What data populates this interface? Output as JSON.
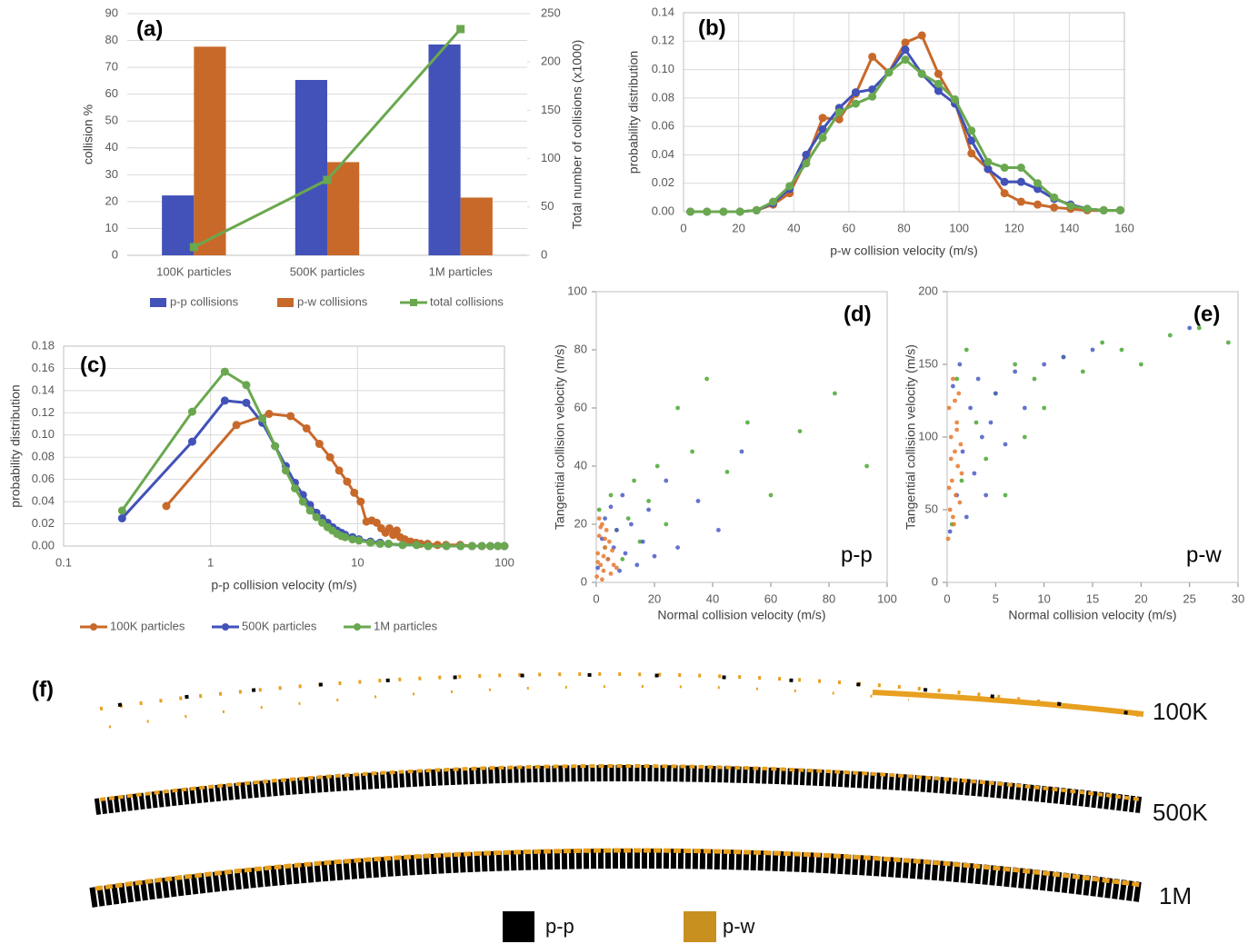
{
  "chart_data": [
    {
      "type": "bar",
      "panel_label": "(a)",
      "ylabel": "collision %",
      "y2label": "Total number of collisions (x1000)",
      "categories": [
        "100K particles",
        "500K particles",
        "1M particles"
      ],
      "series": [
        {
          "name": "p-p collisions",
          "color": "#4252b8",
          "values": [
            22.3,
            65.3,
            78.5
          ]
        },
        {
          "name": "p-w collisions",
          "color": "#c8692a",
          "values": [
            77.7,
            34.7,
            21.5
          ]
        },
        {
          "name": "total collisions",
          "color": "#6aa84f",
          "type": "line",
          "marker": "square",
          "axis": "y2",
          "values": [
            8.5,
            78,
            234
          ]
        }
      ],
      "ylim": [
        0,
        90
      ],
      "yticks": [
        0,
        10,
        20,
        30,
        40,
        50,
        60,
        70,
        80,
        90
      ],
      "y2lim": [
        0,
        250
      ],
      "y2ticks": [
        0,
        50,
        100,
        150,
        200,
        250
      ],
      "grid": "y",
      "legend": "bottom"
    },
    {
      "type": "line",
      "panel_label": "(b)",
      "xlabel": "p-w collision velocity (m/s)",
      "ylabel": "probability distribution",
      "x": [
        2.5,
        8.5,
        14.5,
        20.5,
        26.5,
        32.5,
        38.5,
        44.5,
        50.5,
        56.5,
        62.5,
        68.5,
        74.5,
        80.5,
        86.5,
        92.5,
        98.5,
        104.5,
        110.5,
        116.5,
        122.5,
        128.5,
        134.5,
        140.5,
        146.5,
        152.5,
        158.5
      ],
      "series": [
        {
          "color": "#c8692a",
          "marker": "circle",
          "values": [
            0,
            0,
            0,
            0,
            0.001,
            0.005,
            0.013,
            0.036,
            0.066,
            0.065,
            0.083,
            0.109,
            0.098,
            0.119,
            0.124,
            0.097,
            0.077,
            0.041,
            0.03,
            0.013,
            0.007,
            0.005,
            0.003,
            0.002,
            0.001,
            0.001,
            0.001
          ]
        },
        {
          "color": "#4252b8",
          "marker": "circle",
          "values": [
            0,
            0,
            0,
            0,
            0.001,
            0.006,
            0.016,
            0.04,
            0.058,
            0.073,
            0.084,
            0.086,
            0.098,
            0.114,
            0.097,
            0.085,
            0.076,
            0.05,
            0.03,
            0.021,
            0.021,
            0.016,
            0.009,
            0.005,
            0.002,
            0.001,
            0.001
          ]
        },
        {
          "color": "#6aa84f",
          "marker": "circle",
          "values": [
            0,
            0,
            0,
            0,
            0.001,
            0.007,
            0.018,
            0.034,
            0.052,
            0.07,
            0.076,
            0.081,
            0.098,
            0.107,
            0.097,
            0.09,
            0.079,
            0.057,
            0.035,
            0.031,
            0.031,
            0.02,
            0.01,
            0.004,
            0.002,
            0.001,
            0.001
          ]
        }
      ],
      "xlim": [
        0,
        160
      ],
      "xticks": [
        0,
        20,
        40,
        60,
        80,
        100,
        120,
        140,
        160
      ],
      "ylim": [
        0,
        0.14
      ],
      "yticks": [
        {
          "value": 0,
          "label": "0.00"
        },
        {
          "value": 0.02,
          "label": "0.02"
        },
        {
          "value": 0.04,
          "label": "0.04"
        },
        {
          "value": 0.06,
          "label": "0.06"
        },
        {
          "value": 0.08,
          "label": "0.08"
        },
        {
          "value": 0.1,
          "label": "0.10"
        },
        {
          "value": 0.12,
          "label": "0.12"
        },
        {
          "value": 0.14,
          "label": "0.14"
        }
      ],
      "grid": "both"
    },
    {
      "type": "line",
      "panel_label": "(c)",
      "xlabel": "p-p collision velocity (m/s)",
      "ylabel": "probability distribution",
      "xlog": true,
      "series": [
        {
          "name": "100K particles",
          "color": "#c8692a",
          "marker": "circle",
          "x": [
            0.5,
            1.5,
            2.5,
            3.5,
            4.5,
            5.5,
            6.5,
            7.5,
            8.5,
            9.5,
            10.5,
            11.5,
            12.5,
            13.5,
            14.5,
            15.5,
            16.5,
            17.5,
            18.5,
            19.5,
            21,
            23,
            25,
            27,
            30,
            35,
            40,
            50,
            60,
            70,
            80,
            90,
            100
          ],
          "values": [
            0.036,
            0.109,
            0.119,
            0.117,
            0.106,
            0.092,
            0.08,
            0.068,
            0.058,
            0.048,
            0.04,
            0.022,
            0.023,
            0.021,
            0.016,
            0.012,
            0.016,
            0.01,
            0.014,
            0.008,
            0.006,
            0.004,
            0.003,
            0.002,
            0.002,
            0.001,
            0.001,
            0.001,
            0,
            0,
            0,
            0,
            0
          ]
        },
        {
          "name": "500K particles",
          "color": "#4252b8",
          "marker": "circle",
          "x": [
            0.25,
            0.75,
            1.25,
            1.75,
            2.25,
            2.75,
            3.25,
            3.75,
            4.25,
            4.75,
            5.25,
            5.75,
            6.25,
            6.75,
            7.25,
            7.75,
            8.25,
            9.25,
            10.25,
            12.25,
            14.25,
            16.25,
            20.25,
            25.25,
            30.25,
            40.25,
            50.25,
            60.25,
            70.25,
            80.25,
            90.25,
            99.75
          ],
          "values": [
            0.025,
            0.094,
            0.131,
            0.129,
            0.111,
            0.09,
            0.072,
            0.057,
            0.046,
            0.037,
            0.03,
            0.025,
            0.021,
            0.017,
            0.014,
            0.012,
            0.01,
            0.008,
            0.006,
            0.004,
            0.003,
            0.002,
            0.001,
            0.001,
            0,
            0,
            0,
            0,
            0,
            0,
            0,
            0
          ]
        },
        {
          "name": "1M particles",
          "color": "#6aa84f",
          "marker": "circle",
          "x": [
            0.25,
            0.75,
            1.25,
            1.75,
            2.25,
            2.75,
            3.25,
            3.75,
            4.25,
            4.75,
            5.25,
            5.75,
            6.25,
            6.75,
            7.25,
            7.75,
            8.25,
            9.25,
            10.25,
            12.25,
            14.25,
            16.25,
            20.25,
            25.25,
            30.25,
            40.25,
            50.25,
            60.25,
            70.25,
            80.25,
            90.25,
            99.75
          ],
          "values": [
            0.032,
            0.121,
            0.157,
            0.145,
            0.115,
            0.09,
            0.068,
            0.052,
            0.04,
            0.032,
            0.026,
            0.021,
            0.017,
            0.014,
            0.011,
            0.009,
            0.008,
            0.006,
            0.005,
            0.003,
            0.002,
            0.002,
            0.001,
            0.001,
            0,
            0,
            0,
            0,
            0,
            0,
            0,
            0
          ]
        }
      ],
      "xlim": [
        0.1,
        100
      ],
      "xticks": [
        0.1,
        1,
        10,
        100
      ],
      "ylim": [
        0,
        0.18
      ],
      "yticks": [
        {
          "value": 0,
          "label": "0.00"
        },
        {
          "value": 0.02,
          "label": "0.02"
        },
        {
          "value": 0.04,
          "label": "0.04"
        },
        {
          "value": 0.06,
          "label": "0.06"
        },
        {
          "value": 0.08,
          "label": "0.08"
        },
        {
          "value": 0.1,
          "label": "0.10"
        },
        {
          "value": 0.12,
          "label": "0.12"
        },
        {
          "value": 0.14,
          "label": "0.14"
        },
        {
          "value": 0.16,
          "label": "0.16"
        },
        {
          "value": 0.18,
          "label": "0.18"
        }
      ],
      "grid": "both",
      "legend": "bottom"
    },
    {
      "type": "scatter",
      "panel_label": "(d)",
      "annotation": "p-p",
      "xlabel": "Normal collision velocity (m/s)",
      "ylabel": "Tangential collision velocity (m/s)",
      "series": [
        {
          "color": "#4aa832",
          "x": [
            1,
            3,
            5,
            7,
            9,
            11,
            13,
            15,
            18,
            21,
            24,
            28,
            33,
            38,
            45,
            52,
            60,
            70,
            82,
            93
          ],
          "values": [
            25,
            12,
            30,
            18,
            8,
            22,
            35,
            14,
            28,
            40,
            20,
            60,
            45,
            70,
            38,
            55,
            30,
            52,
            65,
            40
          ]
        },
        {
          "color": "#4a5bc4",
          "x": [
            0.5,
            2,
            3,
            4,
            5,
            6,
            7,
            8,
            9,
            10,
            12,
            14,
            16,
            18,
            20,
            24,
            28,
            35,
            42,
            50
          ],
          "values": [
            5,
            15,
            22,
            8,
            26,
            12,
            18,
            4,
            30,
            10,
            20,
            6,
            14,
            25,
            9,
            35,
            12,
            28,
            18,
            45
          ]
        },
        {
          "color": "#e6782e",
          "x": [
            0.2,
            0.5,
            1,
            1.5,
            2,
            2.5,
            3,
            3.5,
            4,
            4.5,
            5,
            5.5,
            6,
            1,
            2,
            3,
            0.5,
            1.5,
            2.5,
            7
          ],
          "values": [
            2,
            10,
            16,
            6,
            20,
            4,
            12,
            18,
            8,
            14,
            3,
            11,
            6,
            22,
            1,
            15,
            7,
            19,
            9,
            5
          ]
        }
      ],
      "xlim": [
        0,
        100
      ],
      "xticks": [
        0,
        20,
        40,
        60,
        80,
        100
      ],
      "ylim": [
        0,
        100
      ],
      "yticks": [
        0,
        20,
        40,
        60,
        80,
        100
      ]
    },
    {
      "type": "scatter",
      "panel_label": "(e)",
      "annotation": "p-w",
      "xlabel": "Normal collision velocity (m/s)",
      "ylabel": "Tangential collision velocity (m/s)",
      "series": [
        {
          "color": "#4aa832",
          "x": [
            0.5,
            1,
            1.5,
            2,
            3,
            4,
            5,
            6,
            7,
            8,
            9,
            10,
            12,
            14,
            16,
            18,
            20,
            23,
            26,
            29
          ],
          "values": [
            40,
            140,
            70,
            160,
            110,
            85,
            130,
            60,
            150,
            100,
            140,
            120,
            155,
            145,
            165,
            160,
            150,
            170,
            175,
            165
          ]
        },
        {
          "color": "#4a5bc4",
          "x": [
            0.3,
            0.6,
            1,
            1.3,
            1.6,
            2,
            2.4,
            2.8,
            3.2,
            3.6,
            4,
            4.5,
            5,
            6,
            7,
            8,
            10,
            12,
            15,
            25
          ],
          "values": [
            35,
            135,
            60,
            150,
            90,
            45,
            120,
            75,
            140,
            100,
            60,
            110,
            130,
            95,
            145,
            120,
            150,
            155,
            160,
            175
          ]
        },
        {
          "color": "#e6782e",
          "x": [
            0.1,
            0.2,
            0.3,
            0.4,
            0.5,
            0.6,
            0.7,
            0.8,
            0.9,
            1,
            1.1,
            1.2,
            1.3,
            1.4,
            1.5,
            0.2,
            0.4,
            0.6,
            0.8,
            1
          ],
          "values": [
            30,
            120,
            50,
            100,
            70,
            140,
            40,
            90,
            60,
            110,
            80,
            130,
            55,
            95,
            75,
            65,
            85,
            45,
            125,
            105
          ]
        }
      ],
      "xlim": [
        0,
        30
      ],
      "xticks": [
        0,
        5,
        10,
        15,
        20,
        25,
        30
      ],
      "ylim": [
        0,
        200
      ],
      "yticks": [
        0,
        50,
        100,
        150,
        200
      ]
    }
  ],
  "figure_f": {
    "panel_label": "(f)",
    "rows": [
      "100K",
      "500K",
      "1M"
    ],
    "legend": [
      {
        "label": "p-p",
        "color": "#000000"
      },
      {
        "label": "p-w",
        "color": "#c8901e"
      }
    ]
  }
}
